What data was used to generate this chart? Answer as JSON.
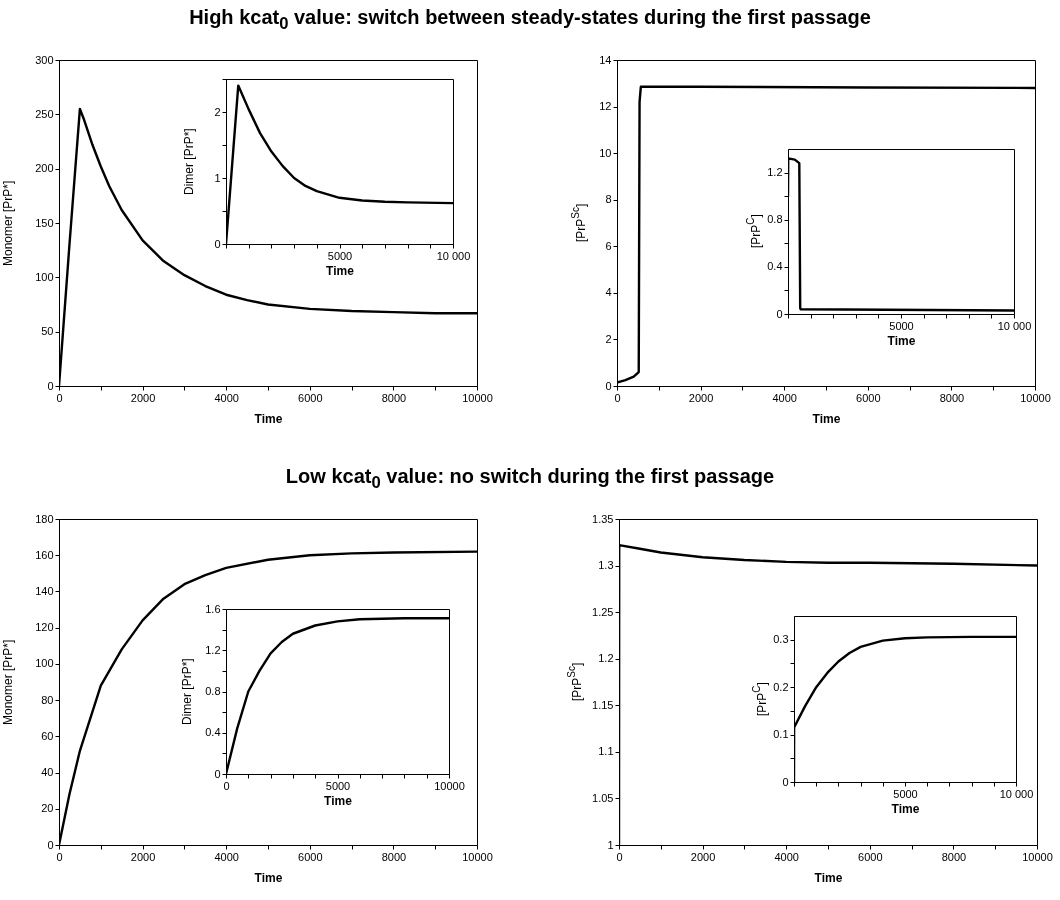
{
  "chart_data": [
    {
      "type": "line",
      "title": "High kcat$_{0}$ value: switch between steady-states during the first passage",
      "xlabel": "Time",
      "ylabel": "Monomer [PrP*]",
      "xlim": [
        0,
        10000
      ],
      "ylim": [
        0,
        300
      ],
      "xticks": [
        0,
        {
          "value": 1000,
          "label": null
        },
        2000,
        {
          "value": 3000,
          "label": null
        },
        4000,
        {
          "value": 5000,
          "label": null
        },
        6000,
        {
          "value": 7000,
          "label": null
        },
        8000,
        {
          "value": 9000,
          "label": null
        },
        10000
      ],
      "yticks": [
        0,
        50,
        100,
        150,
        200,
        250,
        300
      ],
      "x": [
        0,
        250,
        500,
        600,
        800,
        1000,
        1200,
        1500,
        2000,
        2500,
        3000,
        3500,
        4000,
        4500,
        5000,
        6000,
        7000,
        8000,
        9000,
        10000
      ],
      "series": [
        {
          "color": "#000000",
          "values": [
            0,
            130,
            255,
            245,
            222,
            202,
            184,
            162,
            134,
            115,
            102,
            92,
            84,
            79,
            75,
            71,
            69,
            68,
            67,
            67
          ]
        }
      ]
    },
    {
      "type": "line",
      "xlabel": "Time",
      "ylabel": "Dimer [PrP*]",
      "xlim": [
        0,
        10000
      ],
      "ylim": [
        0,
        2.5
      ],
      "xticks": [
        {
          "value": 0,
          "label": null
        },
        {
          "value": 1000,
          "label": null
        },
        {
          "value": 2000,
          "label": null
        },
        {
          "value": 3000,
          "label": null
        },
        {
          "value": 4000,
          "label": null
        },
        5000,
        {
          "value": 6000,
          "label": null
        },
        {
          "value": 7000,
          "label": null
        },
        {
          "value": 8000,
          "label": null
        },
        {
          "value": 9000,
          "label": null
        },
        {
          "value": 10000,
          "label": "10 000"
        }
      ],
      "yticks": [
        0,
        {
          "value": 0.5,
          "label": null
        },
        1,
        {
          "value": 1.5,
          "label": null
        },
        2,
        {
          "value": 2.5,
          "label": null
        }
      ],
      "x": [
        0,
        540,
        1000,
        1500,
        2000,
        2500,
        3000,
        3500,
        4000,
        5000,
        6000,
        7000,
        8000,
        10000
      ],
      "series": [
        {
          "color": "#000000",
          "values": [
            0,
            2.4,
            2.04,
            1.68,
            1.4,
            1.18,
            1.0,
            0.88,
            0.8,
            0.7,
            0.66,
            0.64,
            0.63,
            0.62
          ]
        }
      ]
    },
    {
      "type": "line",
      "xlabel": "Time",
      "ylabel": "[PrP$^{Sc}$]",
      "xlim": [
        0,
        10000
      ],
      "ylim": [
        0,
        14
      ],
      "xticks": [
        0,
        {
          "value": 1000,
          "label": null
        },
        2000,
        {
          "value": 3000,
          "label": null
        },
        4000,
        {
          "value": 5000,
          "label": null
        },
        6000,
        {
          "value": 7000,
          "label": null
        },
        8000,
        {
          "value": 9000,
          "label": null
        },
        10000
      ],
      "yticks": [
        0,
        2,
        4,
        6,
        8,
        10,
        12,
        14
      ],
      "x": [
        0,
        200,
        400,
        520,
        540,
        570,
        2000,
        6000,
        10000
      ],
      "series": [
        {
          "color": "#000000",
          "values": [
            0.15,
            0.25,
            0.4,
            0.6,
            12.2,
            12.85,
            12.85,
            12.82,
            12.8
          ]
        }
      ]
    },
    {
      "type": "line",
      "xlabel": "Time",
      "ylabel": "[PrP$^{C}$]",
      "xlim": [
        0,
        10000
      ],
      "ylim": [
        0,
        1.4
      ],
      "xticks": [
        {
          "value": 0,
          "label": null
        },
        {
          "value": 1000,
          "label": null
        },
        {
          "value": 2000,
          "label": null
        },
        {
          "value": 3000,
          "label": null
        },
        {
          "value": 4000,
          "label": null
        },
        5000,
        {
          "value": 6000,
          "label": null
        },
        {
          "value": 7000,
          "label": null
        },
        {
          "value": 8000,
          "label": null
        },
        {
          "value": 9000,
          "label": null
        },
        {
          "value": 10000,
          "label": "10 000"
        }
      ],
      "yticks": [
        0,
        {
          "value": 0.2,
          "label": null
        },
        0.4,
        {
          "value": 0.6,
          "label": null
        },
        0.8,
        {
          "value": 1.0,
          "label": null
        },
        1.2
      ],
      "x": [
        0,
        10,
        300,
        500,
        540,
        560,
        10000
      ],
      "series": [
        {
          "color": "#000000",
          "values": [
            1.0,
            1.32,
            1.31,
            1.28,
            0.05,
            0.04,
            0.03
          ]
        }
      ]
    },
    {
      "type": "line",
      "title": "Low kcat$_{0}$ value: no switch during the first passage",
      "xlabel": "Time",
      "ylabel": "Monomer [PrP*]",
      "xlim": [
        0,
        10000
      ],
      "ylim": [
        0,
        180
      ],
      "xticks": [
        0,
        {
          "value": 1000,
          "label": null
        },
        2000,
        {
          "value": 3000,
          "label": null
        },
        4000,
        {
          "value": 5000,
          "label": null
        },
        6000,
        {
          "value": 7000,
          "label": null
        },
        8000,
        {
          "value": 9000,
          "label": null
        },
        10000
      ],
      "yticks": [
        0,
        20,
        40,
        60,
        80,
        100,
        120,
        140,
        160,
        180
      ],
      "x": [
        0,
        250,
        500,
        1000,
        1500,
        2000,
        2500,
        3000,
        3500,
        4000,
        5000,
        6000,
        7000,
        8000,
        10000
      ],
      "series": [
        {
          "color": "#000000",
          "values": [
            0,
            28,
            52,
            88,
            108,
            124,
            136,
            144,
            149,
            153,
            157.5,
            160,
            161,
            161.5,
            162
          ]
        }
      ]
    },
    {
      "type": "line",
      "xlabel": "Time",
      "ylabel": "Dimer [PrP*]",
      "xlim": [
        0,
        10000
      ],
      "ylim": [
        0,
        1.6
      ],
      "xticks": [
        0,
        {
          "value": 1000,
          "label": null
        },
        {
          "value": 2000,
          "label": null
        },
        {
          "value": 3000,
          "label": null
        },
        {
          "value": 4000,
          "label": null
        },
        5000,
        {
          "value": 6000,
          "label": null
        },
        {
          "value": 7000,
          "label": null
        },
        {
          "value": 8000,
          "label": null
        },
        {
          "value": 9000,
          "label": null
        },
        10000
      ],
      "yticks": [
        0,
        {
          "value": 0.2,
          "label": null
        },
        0.4,
        {
          "value": 0.6,
          "label": null
        },
        0.8,
        {
          "value": 1.0,
          "label": null
        },
        1.2,
        {
          "value": 1.4,
          "label": null
        },
        1.6
      ],
      "x": [
        0,
        500,
        1000,
        1500,
        2000,
        2500,
        3000,
        4000,
        5000,
        6000,
        8000,
        10000
      ],
      "series": [
        {
          "color": "#000000",
          "values": [
            0,
            0.44,
            0.8,
            1.0,
            1.17,
            1.28,
            1.36,
            1.44,
            1.48,
            1.5,
            1.51,
            1.51
          ]
        }
      ]
    },
    {
      "type": "line",
      "xlabel": "Time",
      "ylabel": "[PrP$^{Sc}$]",
      "xlim": [
        0,
        10000
      ],
      "ylim": [
        1,
        1.35
      ],
      "xticks": [
        0,
        {
          "value": 1000,
          "label": null
        },
        2000,
        {
          "value": 3000,
          "label": null
        },
        4000,
        {
          "value": 5000,
          "label": null
        },
        6000,
        {
          "value": 7000,
          "label": null
        },
        8000,
        {
          "value": 9000,
          "label": null
        },
        10000
      ],
      "yticks": [
        1,
        1.05,
        1.1,
        1.15,
        1.2,
        1.25,
        1.3,
        1.35
      ],
      "x": [
        0,
        5,
        500,
        1000,
        2000,
        3000,
        4000,
        5000,
        6000,
        8000,
        10000
      ],
      "series": [
        {
          "color": "#000000",
          "values": [
            1,
            1.322,
            1.318,
            1.314,
            1.309,
            1.306,
            1.304,
            1.303,
            1.303,
            1.302,
            1.3
          ]
        }
      ]
    },
    {
      "type": "line",
      "xlabel": "Time",
      "ylabel": "[PrP$^{C}$]",
      "xlim": [
        0,
        10000
      ],
      "ylim": [
        0,
        0.35
      ],
      "xticks": [
        {
          "value": 0,
          "label": null
        },
        {
          "value": 1000,
          "label": null
        },
        {
          "value": 2000,
          "label": null
        },
        {
          "value": 3000,
          "label": null
        },
        {
          "value": 4000,
          "label": null
        },
        5000,
        {
          "value": 6000,
          "label": null
        },
        {
          "value": 7000,
          "label": null
        },
        {
          "value": 8000,
          "label": null
        },
        {
          "value": 9000,
          "label": null
        },
        {
          "value": 10000,
          "label": "10 000"
        }
      ],
      "yticks": [
        0,
        {
          "value": 0.05,
          "label": null
        },
        0.1,
        {
          "value": 0.15,
          "label": null
        },
        0.2,
        {
          "value": 0.25,
          "label": null
        },
        0.3
      ],
      "x": [
        0,
        5,
        500,
        1000,
        1500,
        2000,
        2500,
        3000,
        4000,
        5000,
        6000,
        8000,
        10000
      ],
      "series": [
        {
          "color": "#000000",
          "values": [
            0,
            0.115,
            0.16,
            0.2,
            0.23,
            0.254,
            0.272,
            0.285,
            0.298,
            0.303,
            0.305,
            0.306,
            0.306
          ]
        }
      ]
    }
  ]
}
